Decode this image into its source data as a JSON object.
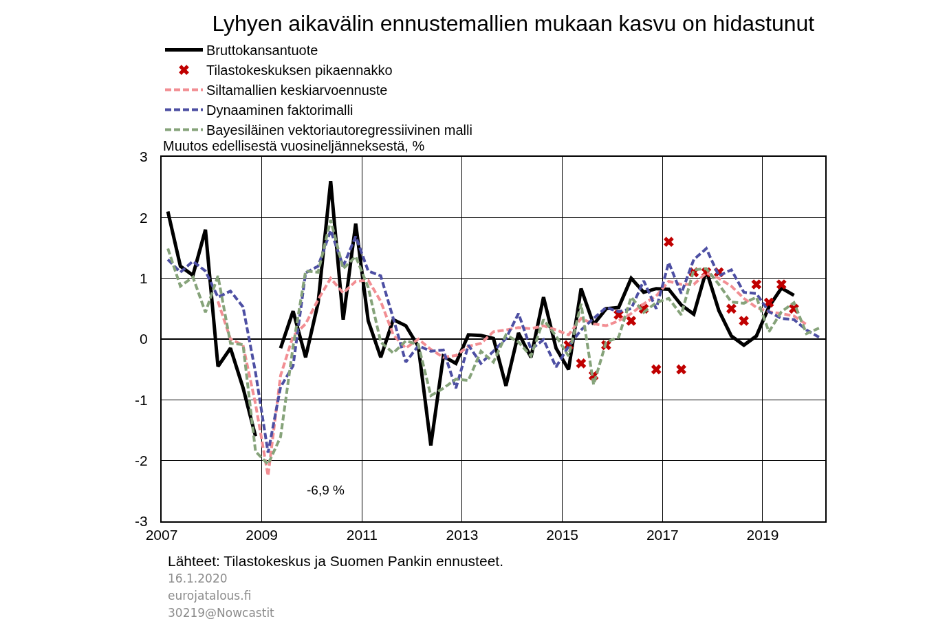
{
  "chart_data": {
    "type": "line",
    "title": "Lyhyen aikavälin ennustemallien mukaan kasvu on hidastunut",
    "ylabel": "Muutos edellisestä vuosineljänneksestä, %",
    "x": [
      2007.125,
      2007.375,
      2007.625,
      2007.875,
      2008.125,
      2008.375,
      2008.625,
      2008.875,
      2009.125,
      2009.375,
      2009.625,
      2009.875,
      2010.125,
      2010.375,
      2010.625,
      2010.875,
      2011.125,
      2011.375,
      2011.625,
      2011.875,
      2012.125,
      2012.375,
      2012.625,
      2012.875,
      2013.125,
      2013.375,
      2013.625,
      2013.875,
      2014.125,
      2014.375,
      2014.625,
      2014.875,
      2015.125,
      2015.375,
      2015.625,
      2015.875,
      2016.125,
      2016.375,
      2016.625,
      2016.875,
      2017.125,
      2017.375,
      2017.625,
      2017.875,
      2018.125,
      2018.375,
      2018.625,
      2018.875,
      2019.125,
      2019.375,
      2019.625,
      2019.875,
      2020.125
    ],
    "series": [
      {
        "name": "Bruttokansantuote",
        "color": "#000000",
        "line_style": "solid",
        "values": [
          2.1,
          1.2,
          1.05,
          1.8,
          -0.45,
          -0.15,
          -0.8,
          -1.6,
          null,
          -0.15,
          0.46,
          -0.3,
          0.6,
          2.6,
          0.32,
          1.9,
          0.3,
          -0.3,
          0.32,
          0.22,
          -0.12,
          -1.75,
          -0.28,
          -0.4,
          0.07,
          0.06,
          0.01,
          -0.77,
          0.1,
          -0.3,
          0.69,
          -0.15,
          -0.5,
          0.83,
          0.24,
          0.5,
          0.52,
          1.0,
          0.77,
          0.83,
          0.82,
          0.56,
          0.41,
          1.13,
          0.47,
          0.05,
          -0.1,
          0.05,
          0.53,
          0.84,
          0.72,
          null,
          null
        ]
      },
      {
        "name": "Tilastokeskuksen pikaennakko",
        "type": "scatter",
        "color": "#c00000",
        "marker": "cross",
        "values": [
          null,
          null,
          null,
          null,
          null,
          null,
          null,
          null,
          null,
          null,
          null,
          null,
          null,
          null,
          null,
          null,
          null,
          null,
          null,
          null,
          null,
          null,
          null,
          null,
          null,
          null,
          null,
          null,
          null,
          null,
          null,
          null,
          -0.1,
          -0.4,
          -0.6,
          -0.1,
          0.4,
          0.3,
          0.5,
          -0.5,
          1.6,
          -0.5,
          1.1,
          1.1,
          1.1,
          0.5,
          0.3,
          0.9,
          0.6,
          0.9,
          0.5,
          null,
          null
        ]
      },
      {
        "name": "Siltamallien keskiarvoennuste",
        "color": "#f28e93",
        "line_style": "dashed",
        "values": [
          null,
          null,
          null,
          null,
          0.62,
          0.0,
          -0.1,
          -1.07,
          -2.25,
          -0.6,
          0.05,
          0.25,
          0.65,
          1.0,
          0.76,
          0.95,
          0.97,
          0.62,
          0.07,
          -0.15,
          0.0,
          -0.17,
          -0.3,
          -0.27,
          -0.12,
          -0.07,
          0.12,
          0.15,
          0.19,
          0.17,
          0.22,
          0.15,
          0.07,
          0.34,
          0.25,
          0.22,
          0.3,
          0.42,
          0.58,
          0.71,
          0.95,
          0.9,
          0.9,
          1.09,
          1.0,
          0.87,
          0.67,
          0.52,
          0.45,
          0.42,
          0.38,
          0.24,
          null
        ]
      },
      {
        "name": "Dynaaminen faktorimalli",
        "color": "#4d4fa3",
        "line_style": "dashed",
        "values": [
          1.31,
          1.1,
          1.28,
          1.12,
          0.69,
          0.79,
          0.53,
          -0.55,
          -1.87,
          -0.79,
          -0.44,
          1.09,
          1.2,
          1.79,
          1.2,
          1.69,
          1.12,
          1.04,
          0.34,
          -0.38,
          -0.11,
          -0.2,
          -0.18,
          -0.81,
          -0.1,
          -0.4,
          -0.2,
          0.01,
          0.42,
          -0.17,
          -0.01,
          -0.46,
          -0.12,
          0.15,
          0.34,
          0.52,
          0.45,
          0.5,
          0.96,
          0.5,
          1.26,
          0.75,
          1.31,
          1.49,
          1.04,
          1.14,
          0.77,
          0.75,
          0.45,
          0.34,
          0.32,
          0.15,
          0.03
        ]
      },
      {
        "name": "Bayesiläinen vektoriautoregressiivinen malli",
        "color": "#86a37a",
        "line_style": "dashed",
        "values": [
          1.49,
          0.87,
          1.02,
          0.44,
          1.04,
          -0.07,
          -0.09,
          -1.85,
          -2.06,
          -1.61,
          -0.12,
          1.12,
          1.1,
          1.96,
          1.16,
          1.36,
          0.85,
          -0.05,
          -0.23,
          -0.03,
          -0.09,
          -0.93,
          -0.81,
          -0.66,
          -0.68,
          -0.2,
          -0.38,
          0.07,
          -0.05,
          -0.28,
          0.32,
          0.05,
          -0.28,
          0.58,
          -0.75,
          -0.05,
          0.03,
          0.69,
          0.44,
          0.6,
          0.67,
          0.4,
          1.14,
          1.16,
          0.9,
          0.61,
          0.59,
          0.69,
          0.12,
          0.45,
          0.6,
          0.09,
          0.18
        ]
      }
    ],
    "xlim": [
      2007,
      2020.25
    ],
    "xticks": [
      2007,
      2009,
      2011,
      2013,
      2015,
      2017,
      2019
    ],
    "ylim": [
      -3,
      3
    ],
    "yticks": [
      -3,
      -2,
      -1,
      0,
      1,
      2,
      3
    ],
    "grid": true,
    "legend": "top left",
    "annotations": [
      "-6,9 %",
      "Lähteet: Tilastokeskus ja Suomen Pankin ennusteet.",
      "16.1.2020",
      "eurojatalous.fi",
      "30219@Nowcastit"
    ]
  }
}
